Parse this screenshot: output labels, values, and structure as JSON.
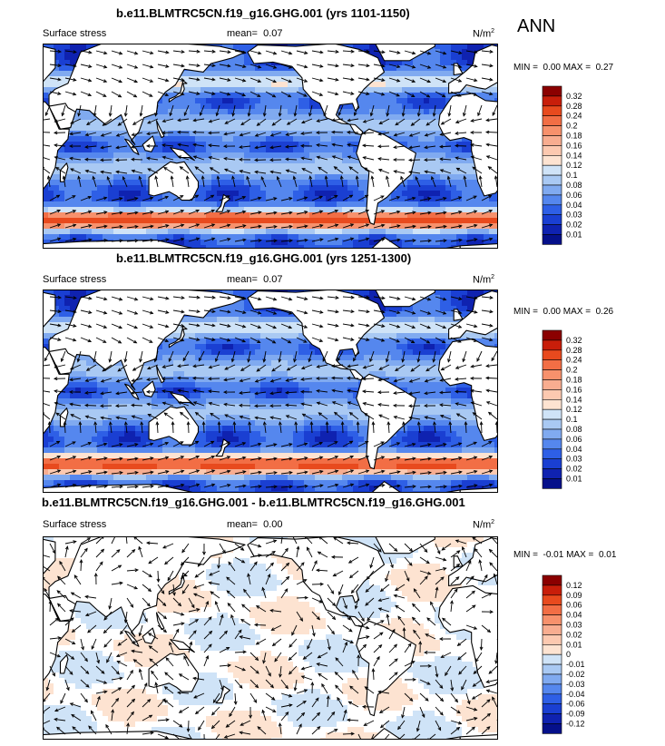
{
  "season": "ANN",
  "panels": [
    {
      "title": "b.e11.BLMTRC5CN.f19_g16.GHG.001 (yrs 1101-1150)",
      "variable": "Surface stress",
      "mean_label": "mean=",
      "mean_value": "0.07",
      "units": "N/m",
      "units_exp": "2",
      "min_label": "MIN =",
      "min_value": "0.00",
      "max_label": "MAX =",
      "max_value": "0.27",
      "scale": "abs"
    },
    {
      "title": "b.e11.BLMTRC5CN.f19_g16.GHG.001 (yrs 1251-1300)",
      "variable": "Surface stress",
      "mean_label": "mean=",
      "mean_value": "0.07",
      "units": "N/m",
      "units_exp": "2",
      "min_label": "MIN =",
      "min_value": "0.00",
      "max_label": "MAX =",
      "max_value": "0.26",
      "scale": "abs"
    },
    {
      "title": "b.e11.BLMTRC5CN.f19_g16.GHG.001 - b.e11.BLMTRC5CN.f19_g16.GHG.001",
      "variable": "Surface stress",
      "mean_label": "mean=",
      "mean_value": "0.00",
      "units": "N/m",
      "units_exp": "2",
      "min_label": "MIN =",
      "min_value": "-0.01",
      "max_label": "MAX =",
      "max_value": "0.01",
      "scale": "diff"
    }
  ],
  "colorbars": {
    "abs": {
      "labels": [
        "0.32",
        "0.28",
        "0.24",
        "0.2",
        "0.18",
        "0.16",
        "0.14",
        "0.12",
        "0.1",
        "0.08",
        "0.06",
        "0.04",
        "0.03",
        "0.02",
        "0.01"
      ],
      "colors": [
        "#8b0000",
        "#c81e0a",
        "#e84a1e",
        "#f26e45",
        "#f7916c",
        "#f8ad90",
        "#fcc9b0",
        "#fde3d1",
        "#cfe3f7",
        "#a9c9f3",
        "#80aaf0",
        "#5587ee",
        "#2e5fe6",
        "#1a3fd2",
        "#0f22b0",
        "#05108a"
      ]
    },
    "diff": {
      "labels": [
        "0.12",
        "0.09",
        "0.06",
        "0.04",
        "0.03",
        "0.02",
        "0.01",
        "0",
        "-0.01",
        "-0.02",
        "-0.03",
        "-0.04",
        "-0.06",
        "-0.09",
        "-0.12"
      ],
      "colors": [
        "#8b0000",
        "#c81e0a",
        "#e84a1e",
        "#f26e45",
        "#f7916c",
        "#f8ad90",
        "#fcc9b0",
        "#fde3d1",
        "#cfe3f7",
        "#a9c9f3",
        "#80aaf0",
        "#5587ee",
        "#2e5fe6",
        "#1a3fd2",
        "#0f22b0",
        "#05108a"
      ]
    }
  }
}
